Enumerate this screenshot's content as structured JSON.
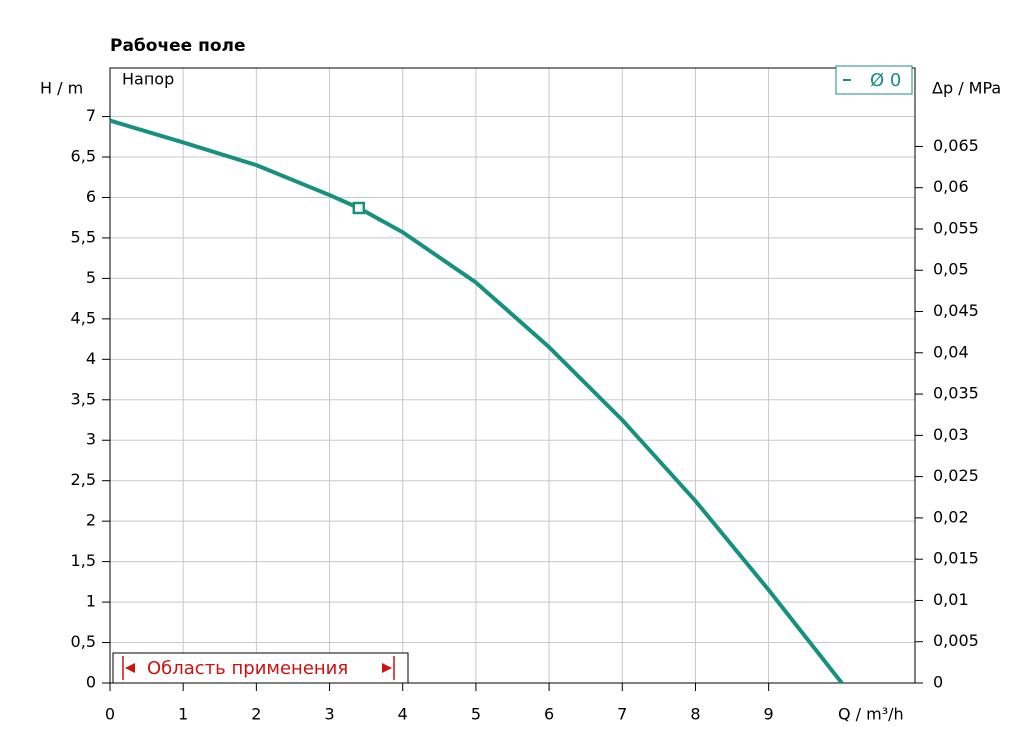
{
  "chart_data": {
    "type": "line",
    "title": "Рабочее поле",
    "y_label": "H / m",
    "y2_label": "Δp / MPa",
    "x_label": "Q / m³/h",
    "plot_label": "Напор",
    "annotation": "Область применения",
    "x": [
      0,
      1,
      2,
      3,
      3.4,
      4,
      5,
      6,
      7,
      8,
      9,
      10
    ],
    "series": [
      {
        "name": "Ø 0",
        "color": "#17917f",
        "values": [
          6.95,
          6.68,
          6.4,
          6.03,
          5.87,
          5.57,
          4.95,
          4.15,
          3.25,
          2.25,
          1.15,
          0
        ]
      }
    ],
    "operating_point": {
      "x": 3.4,
      "y": 5.87
    },
    "xlim": [
      0,
      11
    ],
    "xticks": [
      0,
      1,
      2,
      3,
      4,
      5,
      6,
      7,
      8,
      9
    ],
    "ylim": [
      0,
      7.6
    ],
    "yticks": [
      0,
      {
        "value": 0.5,
        "label": "0,5"
      },
      1,
      {
        "value": 1.5,
        "label": "1,5"
      },
      2,
      {
        "value": 2.5,
        "label": "2,5"
      },
      3,
      {
        "value": 3.5,
        "label": "3,5"
      },
      4,
      {
        "value": 4.5,
        "label": "4,5"
      },
      5,
      {
        "value": 5.5,
        "label": "5,5"
      },
      6,
      {
        "value": 6.5,
        "label": "6,5"
      },
      7
    ],
    "y2lim": [
      0,
      0.0745
    ],
    "y2ticks": [
      0,
      {
        "value": 0.005,
        "label": "0,005"
      },
      {
        "value": 0.01,
        "label": "0,01"
      },
      {
        "value": 0.015,
        "label": "0,015"
      },
      {
        "value": 0.02,
        "label": "0,02"
      },
      {
        "value": 0.025,
        "label": "0,025"
      },
      {
        "value": 0.03,
        "label": "0,03"
      },
      {
        "value": 0.035,
        "label": "0,035"
      },
      {
        "value": 0.04,
        "label": "0,04"
      },
      {
        "value": 0.045,
        "label": "0,045"
      },
      {
        "value": 0.05,
        "label": "0,05"
      },
      {
        "value": 0.055,
        "label": "0,055"
      },
      {
        "value": 0.06,
        "label": "0,06"
      },
      {
        "value": 0.065,
        "label": "0,065"
      }
    ],
    "grid": true,
    "annotation_color": "#d01010"
  }
}
